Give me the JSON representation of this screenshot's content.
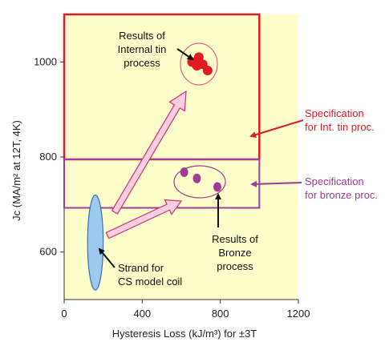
{
  "chart_data": {
    "type": "scatter",
    "xlabel": "Hysteresis Loss (kJ/m³) for ±3T",
    "ylabel": "Jc (MA/m² at 12T, 4K)",
    "xlim": [
      0,
      1200
    ],
    "ylim": [
      500,
      1100
    ],
    "xticks": [
      0,
      400,
      800,
      1200
    ],
    "yticks": [
      600,
      800,
      1000
    ],
    "grid": false,
    "plot_background": "#ffffcc",
    "series": [
      {
        "color": "#e01b24",
        "x": [
          655,
          680,
          690,
          710,
          735
        ],
        "y": [
          1000,
          992,
          1010,
          995,
          982
        ]
      },
      {
        "color": "#a23a96",
        "x": [
          615,
          680,
          785
        ],
        "y": [
          768,
          755,
          737
        ]
      }
    ],
    "spec_regions": [
      {
        "color": "#e01b24",
        "x": [
          0,
          1000
        ],
        "y": [
          795,
          1100
        ]
      },
      {
        "color": "#a23a96",
        "x": [
          0,
          1000
        ],
        "y": [
          693,
          795
        ]
      }
    ],
    "strand_region": {
      "color": "#9ec9ee",
      "x_center": 160,
      "y_center": 620,
      "x_halfwidth": 40,
      "y_halfheight": 100
    },
    "annotations": {
      "internal_tin": [
        "Results of",
        "Internal tin",
        "process"
      ],
      "bronze": [
        "Results of",
        "Bronze",
        "process"
      ],
      "strand": [
        "Strand for",
        "CS model coil"
      ],
      "spec_int_tin": [
        "Specification",
        "for Int. tin proc."
      ],
      "spec_bronze": [
        "Specification",
        "for bronze proc."
      ]
    }
  }
}
